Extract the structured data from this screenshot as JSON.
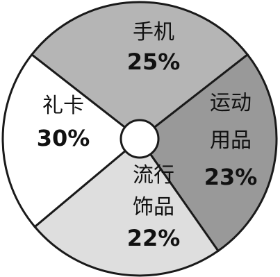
{
  "chart_data": {
    "type": "pie",
    "style": "donut",
    "categories": [
      "手机",
      "运动用品",
      "流行饰品",
      "礼卡"
    ],
    "values": [
      25,
      23,
      22,
      30
    ],
    "unit": "%",
    "slices": [
      {
        "label_lines": [
          "手机"
        ],
        "value_text": "25%",
        "color": "#b5b5b5"
      },
      {
        "label_lines": [
          "运动",
          "用品"
        ],
        "value_text": "23%",
        "color": "#999999"
      },
      {
        "label_lines": [
          "流行",
          "饰品"
        ],
        "value_text": "22%",
        "color": "#dedede"
      },
      {
        "label_lines": [
          "礼卡"
        ],
        "value_text": "30%",
        "color": "#ffffff"
      }
    ],
    "title": "",
    "legend": "none"
  }
}
